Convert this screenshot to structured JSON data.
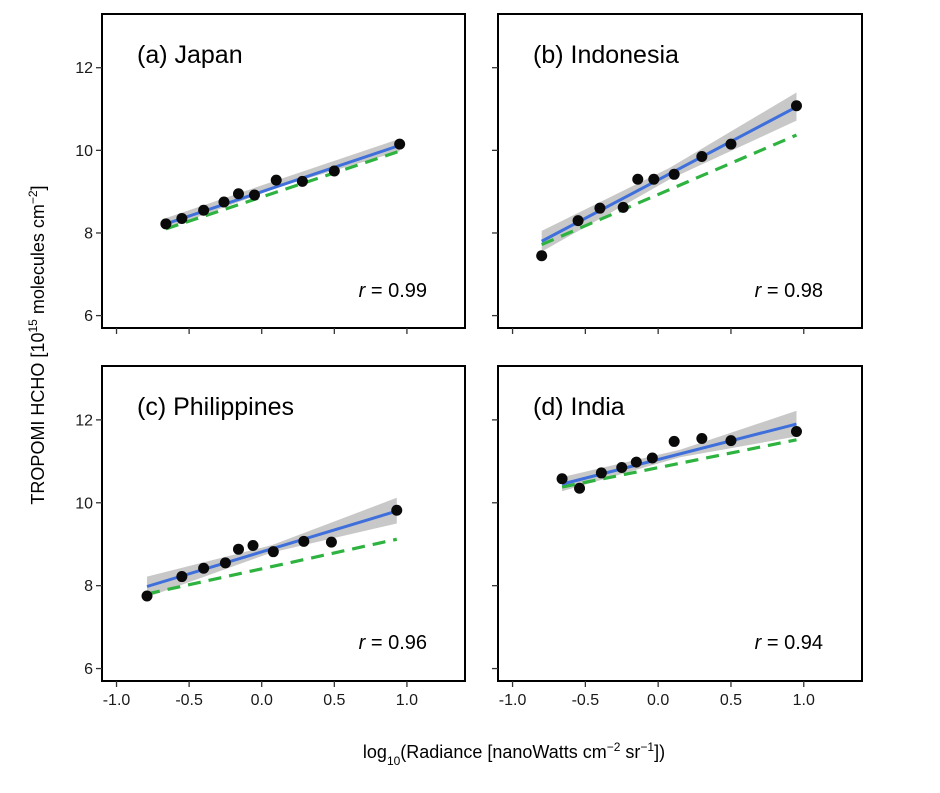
{
  "chart_data": {
    "type": "scatter",
    "layout": "2x2 panels, shared axes",
    "xlabel": {
      "prefix": "log",
      "sub": "10",
      "main": "(Radiance [nanoWatts cm",
      "sup1": "−2",
      "mid": " sr",
      "sup2": "−1",
      "end": "])"
    },
    "ylabel": {
      "main": "TROPOMI HCHO [10",
      "sup1": "15",
      "mid": " molecules cm",
      "sup2": "−2",
      "end": "]"
    },
    "xlim": [
      -1.1,
      1.4
    ],
    "ylim": [
      5.7,
      13.3
    ],
    "xticks": [
      -1.0,
      -0.5,
      0.0,
      0.5,
      1.0
    ],
    "xtick_labels": [
      "-1.0",
      "-0.5",
      "0.0",
      "0.5",
      "1.0"
    ],
    "yticks": [
      6,
      8,
      10,
      12
    ],
    "ytick_labels": [
      "6",
      "8",
      "10",
      "12"
    ],
    "grid": false,
    "styles": {
      "points": "#0a0a0a",
      "fit_line": "#3f6fdb",
      "confidence_band": "#c8c8c8",
      "reference_line": "#2eb340"
    },
    "panels": [
      {
        "label": "(a) Japan",
        "r_symbol": "r",
        "r_text": " = 0.99",
        "points": {
          "x": [
            -0.66,
            -0.55,
            -0.4,
            -0.26,
            -0.16,
            -0.05,
            0.1,
            0.28,
            0.5,
            0.95
          ],
          "y": [
            8.22,
            8.35,
            8.55,
            8.75,
            8.95,
            8.92,
            9.28,
            9.25,
            9.5,
            10.15
          ]
        },
        "fit_line": {
          "x": [
            -0.66,
            0.95
          ],
          "y": [
            8.22,
            10.12
          ]
        },
        "confidence_band": {
          "x": [
            -0.66,
            0.15,
            0.95
          ],
          "lower": [
            8.1,
            9.15,
            9.98
          ],
          "upper": [
            8.36,
            9.33,
            10.28
          ]
        },
        "reference_line": {
          "x": [
            -0.66,
            0.95
          ],
          "y": [
            8.1,
            9.98
          ]
        }
      },
      {
        "label": "(b) Indonesia",
        "r_symbol": "r",
        "r_text": " = 0.98",
        "points": {
          "x": [
            -0.8,
            -0.55,
            -0.4,
            -0.24,
            -0.14,
            -0.03,
            0.11,
            0.3,
            0.5,
            0.95
          ],
          "y": [
            7.45,
            8.3,
            8.6,
            8.62,
            9.3,
            9.3,
            9.42,
            9.85,
            10.15,
            11.08
          ]
        },
        "fit_line": {
          "x": [
            -0.8,
            0.95
          ],
          "y": [
            7.8,
            11.05
          ]
        },
        "confidence_band": {
          "x": [
            -0.8,
            0.08,
            0.95
          ],
          "lower": [
            7.55,
            9.3,
            10.72
          ],
          "upper": [
            8.05,
            9.58,
            11.4
          ]
        },
        "reference_line": {
          "x": [
            -0.8,
            0.95
          ],
          "y": [
            7.72,
            10.37
          ]
        }
      },
      {
        "label": "(c) Philippines",
        "r_symbol": "r",
        "r_text": " = 0.96",
        "points": {
          "x": [
            -0.79,
            -0.55,
            -0.4,
            -0.25,
            -0.16,
            -0.06,
            0.08,
            0.29,
            0.48,
            0.93
          ],
          "y": [
            7.75,
            8.22,
            8.42,
            8.55,
            8.88,
            8.97,
            8.82,
            9.07,
            9.05,
            9.82
          ]
        },
        "fit_line": {
          "x": [
            -0.79,
            0.93
          ],
          "y": [
            7.98,
            9.8
          ]
        },
        "confidence_band": {
          "x": [
            -0.79,
            0.07,
            0.93
          ],
          "lower": [
            7.72,
            8.8,
            9.5
          ],
          "upper": [
            8.22,
            8.98,
            10.12
          ]
        },
        "reference_line": {
          "x": [
            -0.79,
            0.93
          ],
          "y": [
            7.8,
            9.12
          ]
        }
      },
      {
        "label": "(d) India",
        "r_symbol": "r",
        "r_text": " = 0.94",
        "points": {
          "x": [
            -0.66,
            -0.54,
            -0.39,
            -0.25,
            -0.15,
            -0.04,
            0.11,
            0.3,
            0.5,
            0.95
          ],
          "y": [
            10.58,
            10.35,
            10.72,
            10.85,
            10.98,
            11.08,
            11.48,
            11.55,
            11.5,
            11.72
          ]
        },
        "fit_line": {
          "x": [
            -0.66,
            0.95
          ],
          "y": [
            10.45,
            11.9
          ]
        },
        "confidence_band": {
          "x": [
            -0.66,
            0.15,
            0.95
          ],
          "lower": [
            10.28,
            11.1,
            11.6
          ],
          "upper": [
            10.62,
            11.28,
            12.22
          ]
        },
        "reference_line": {
          "x": [
            -0.66,
            0.95
          ],
          "y": [
            10.38,
            11.52
          ]
        }
      }
    ]
  }
}
